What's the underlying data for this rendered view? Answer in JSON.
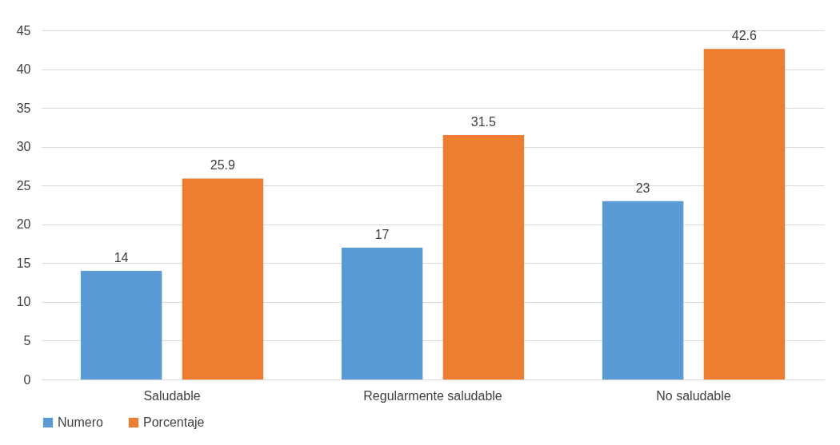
{
  "chart_data": {
    "type": "bar",
    "categories": [
      "Saludable",
      "Regularmente saludable",
      "No saludable"
    ],
    "series": [
      {
        "name": "Numero",
        "color": "#5b9bd5",
        "values": [
          14,
          17,
          23
        ]
      },
      {
        "name": "Porcentaje",
        "color": "#ed7d31",
        "values": [
          25.9,
          31.5,
          42.6
        ]
      }
    ],
    "ylim": [
      0,
      45
    ],
    "yticks": [
      0,
      5,
      10,
      15,
      20,
      25,
      30,
      35,
      40,
      45
    ],
    "grid": "y",
    "legend": "bottom",
    "data_labels": true
  }
}
